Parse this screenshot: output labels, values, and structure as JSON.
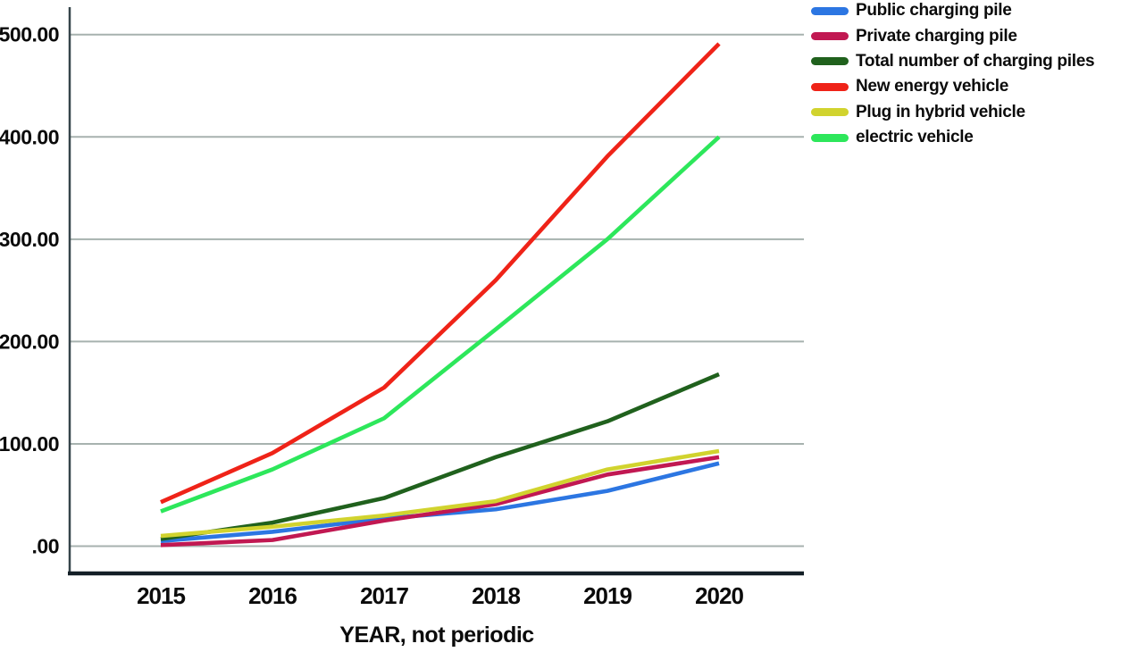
{
  "chart_data": {
    "type": "line",
    "title": "",
    "xlabel": "YEAR, not periodic",
    "ylabel": "",
    "x_labels": [
      "2015",
      "2016",
      "2017",
      "2018",
      "2019",
      "2020"
    ],
    "y_ticks": [
      0,
      100,
      200,
      300,
      400,
      500
    ],
    "y_tick_labels": [
      ".00",
      "100.00",
      "200.00",
      "300.00",
      "400.00",
      "500.00"
    ],
    "ylim": [
      0,
      500
    ],
    "grid": true,
    "legend_position": "outside-top-right",
    "series": [
      {
        "name": "Public charging pile",
        "color": "#2c76e2",
        "values": [
          5,
          14,
          27,
          36,
          54,
          81
        ]
      },
      {
        "name": "Private charging pile",
        "color": "#c11852",
        "values": [
          1,
          6,
          25,
          41,
          70,
          87
        ]
      },
      {
        "name": "Total number of charging piles",
        "color": "#20611d",
        "values": [
          7,
          23,
          47,
          87,
          122,
          168
        ]
      },
      {
        "name": "New energy vehicle",
        "color": "#ef2318",
        "values": [
          43,
          91,
          155,
          260,
          381,
          491
        ]
      },
      {
        "name": "Plug in hybrid vehicle",
        "color": "#d1d32e",
        "values": [
          10,
          19,
          30,
          44,
          75,
          93
        ]
      },
      {
        "name": "electric vehicle",
        "color": "#2de75b",
        "values": [
          34,
          75,
          125,
          212,
          300,
          400
        ]
      }
    ]
  },
  "colors": {
    "background": "#ffffff",
    "gridline": "#a7b2af",
    "y_axis_line": "#36454a",
    "x_axis_line": "#131f26",
    "text": "#0b0b0b"
  }
}
